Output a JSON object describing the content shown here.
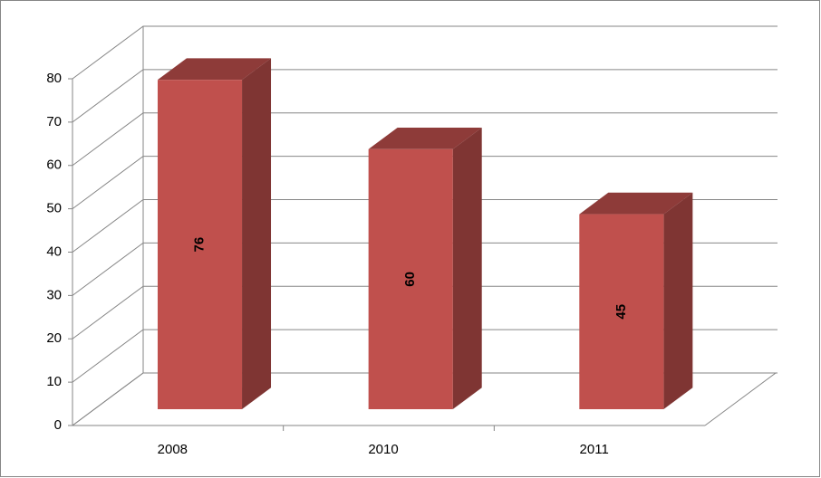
{
  "chart_data": {
    "type": "bar3d",
    "categories": [
      "2008",
      "2010",
      "2011"
    ],
    "values": [
      76,
      60,
      45
    ],
    "color": "#c0504d",
    "ylim": [
      0,
      80
    ],
    "yticks": [
      0,
      10,
      20,
      30,
      40,
      50,
      60,
      70,
      80
    ],
    "grid": true
  }
}
